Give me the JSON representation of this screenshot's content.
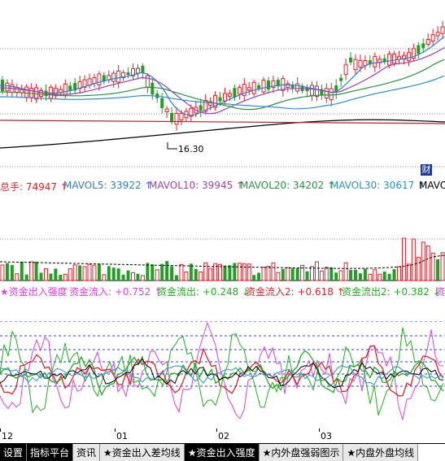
{
  "price_panel": {
    "low_marker": "16.30",
    "corner_icon_text": "财"
  },
  "volume_info": {
    "items": [
      {
        "text": "总手: 74947 ↑",
        "color": "#e8202a"
      },
      {
        "text": "MAVOL5: 33922 ↑",
        "color": "#2a7fd4"
      },
      {
        "text": "MAVOL10: 39945 ↑",
        "color": "#a040b0"
      },
      {
        "text": "MAVOL20: 34202 ↑",
        "color": "#2a9040"
      },
      {
        "text": "MAVOL30: 30617 ↑",
        "color": "#2a8fd0"
      },
      {
        "text": "MAVO",
        "color": "#000000"
      }
    ]
  },
  "flow_info": {
    "items": [
      {
        "text": "★资金出入强度",
        "color": "#e040e0"
      },
      {
        "text": "资金流入: +0.752 ↑",
        "color": "#e040e0"
      },
      {
        "text": "资金流出: +0.248 ↓",
        "color": "#20b020"
      },
      {
        "text": "资金流入2: +0.618 ↑",
        "color": "#e8202a"
      },
      {
        "text": "资金流出2: +0.382 ↓",
        "color": "#20b020"
      },
      {
        "text": "资",
        "color": "#e040e0"
      }
    ]
  },
  "date_axis": {
    "labels": [
      "12",
      "01",
      "02",
      "03"
    ]
  },
  "tabs": [
    {
      "label": "设置",
      "style": "black"
    },
    {
      "label": "指标平台",
      "style": "black"
    },
    {
      "label": "资讯",
      "style": "normal"
    },
    {
      "label": "★资金出入差均线",
      "style": "normal"
    },
    {
      "label": "★资金出入强度",
      "style": "active"
    },
    {
      "label": "★内外盘强弱图示",
      "style": "normal"
    },
    {
      "label": "★内盘外盘均线",
      "style": "normal"
    }
  ],
  "colors": {
    "up": "#e8202a",
    "down": "#20a020",
    "ma5": "#2a7fd4",
    "ma10": "#a040b0",
    "ma20": "#2a9040",
    "ma30": "#2a8fd0",
    "grid": "#3040c0"
  }
}
